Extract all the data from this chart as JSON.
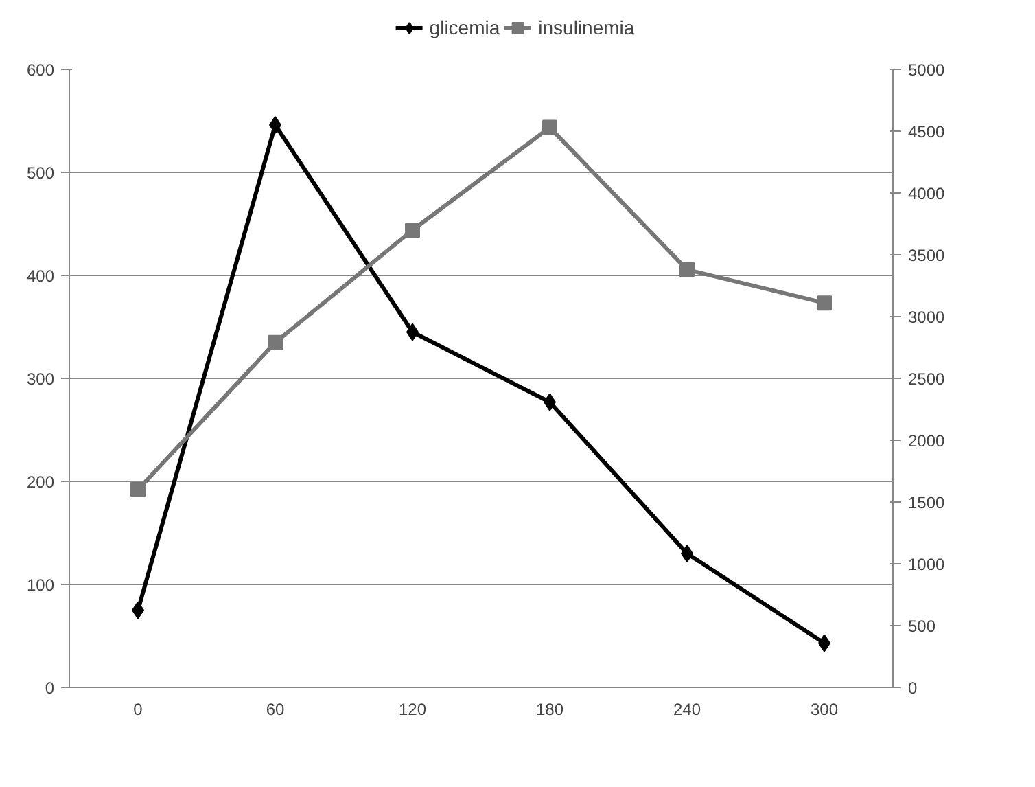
{
  "chart_data": {
    "type": "line",
    "categories": [
      "0",
      "60",
      "120",
      "180",
      "240",
      "300"
    ],
    "ylim": [
      0,
      600
    ],
    "yticks": [
      0,
      100,
      200,
      300,
      400,
      500,
      600
    ],
    "y2lim": [
      0,
      5000
    ],
    "y2ticks": [
      0,
      500,
      1000,
      1500,
      2000,
      2500,
      3000,
      3500,
      4000,
      4500,
      5000
    ],
    "grid": "y",
    "legend": "top",
    "series": [
      {
        "name": "glicemia",
        "color": "#000000",
        "marker": "diamond",
        "values": [
          75,
          546,
          345,
          277,
          130,
          43
        ]
      },
      {
        "name": "insulinemia",
        "color": "#777777",
        "marker": "square",
        "axis": "y2",
        "values": [
          1600,
          2790,
          3700,
          4530,
          3380,
          3110
        ]
      }
    ]
  }
}
